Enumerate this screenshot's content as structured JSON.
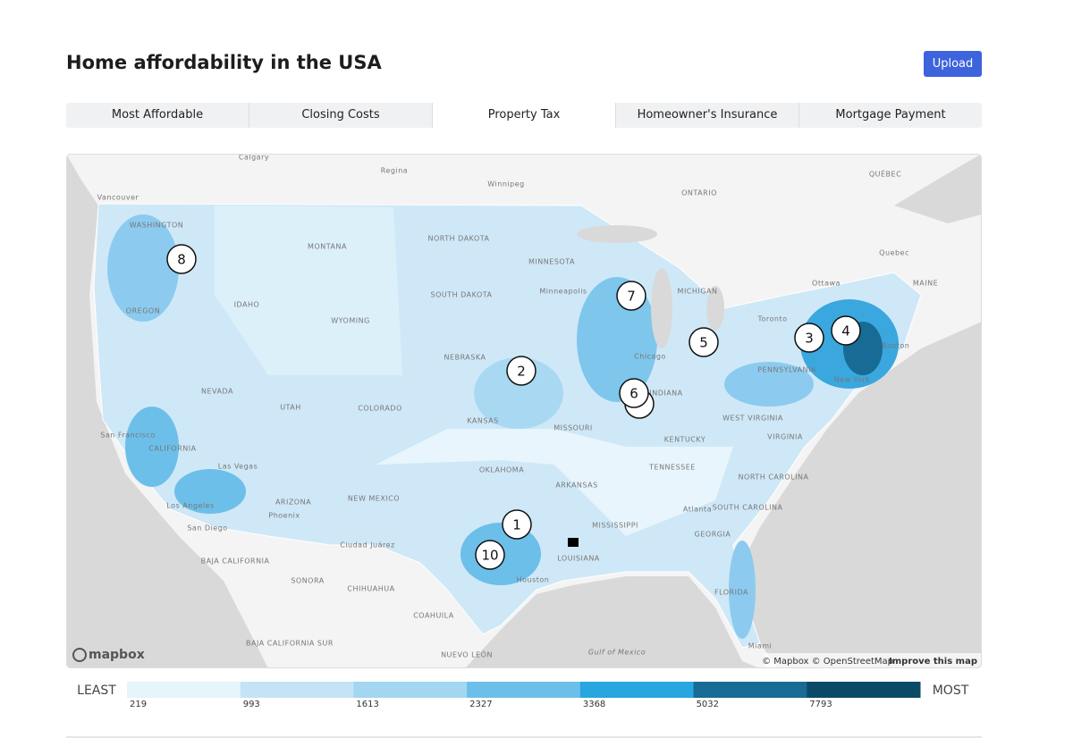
{
  "header": {
    "title": "Home affordability in the USA",
    "button": "Upload"
  },
  "tabs": {
    "items": [
      "Most Affordable",
      "Closing Costs",
      "Property Tax",
      "Homeowner's Insurance",
      "Mortgage Payment"
    ],
    "active": 2
  },
  "map": {
    "places": [
      "Calgary",
      "Regina",
      "Winnipeg",
      "ONTARIO",
      "QUÉBEC",
      "Vancouver",
      "WASHINGTON",
      "MONTANA",
      "NORTH DAKOTA",
      "MINNESOTA",
      "Quebec",
      "Ottawa",
      "MAINE",
      "SOUTH DAKOTA",
      "Minneapolis",
      "MICHIGAN",
      "OREGON",
      "IDAHO",
      "WYOMING",
      "Toronto",
      "NEBRASKA",
      "Chicago",
      "NEVADA",
      "UTAH",
      "COLORADO",
      "KANSAS",
      "MISSOURI",
      "INDIANA",
      "PENNSYLVANIA",
      "New York",
      "Boston",
      "WEST VIRGINIA",
      "KENTUCKY",
      "VIRGINIA",
      "San Francisco",
      "CALIFORNIA",
      "Las Vegas",
      "OKLAHOMA",
      "TENNESSEE",
      "NORTH CAROLINA",
      "ARKANSAS",
      "ARIZONA",
      "NEW MEXICO",
      "Los Angeles",
      "Phoenix",
      "Atlanta",
      "SOUTH CAROLINA",
      "MISSISSIPPI",
      "San Diego",
      "GEORGIA",
      "Ciudad Juárez",
      "BAJA CALIFORNIA",
      "LOUISIANA",
      "Houston",
      "SONORA",
      "CHIHUAHUA",
      "FLORIDA",
      "COAHUILA",
      "BAJA CALIFORNIA SUR",
      "Gulf of Mexico",
      "NUEVO LEÓN",
      "Miami"
    ],
    "markers": [
      "8",
      "7",
      "5",
      "3",
      "4",
      "2",
      "6",
      "1",
      "10"
    ],
    "logo": "mapbox",
    "attribution": "© Mapbox © OpenStreetMap",
    "improve": "Improve this map"
  },
  "legend": {
    "low": "LEAST",
    "high": "MOST",
    "breaks": [
      219,
      993,
      1613,
      2327,
      3368,
      5032,
      7793
    ],
    "colors": [
      "#e6f4fc",
      "#c4e4f6",
      "#a3d6f1",
      "#6cbfe9",
      "#27a6df",
      "#186b94",
      "#0a4a66"
    ]
  }
}
